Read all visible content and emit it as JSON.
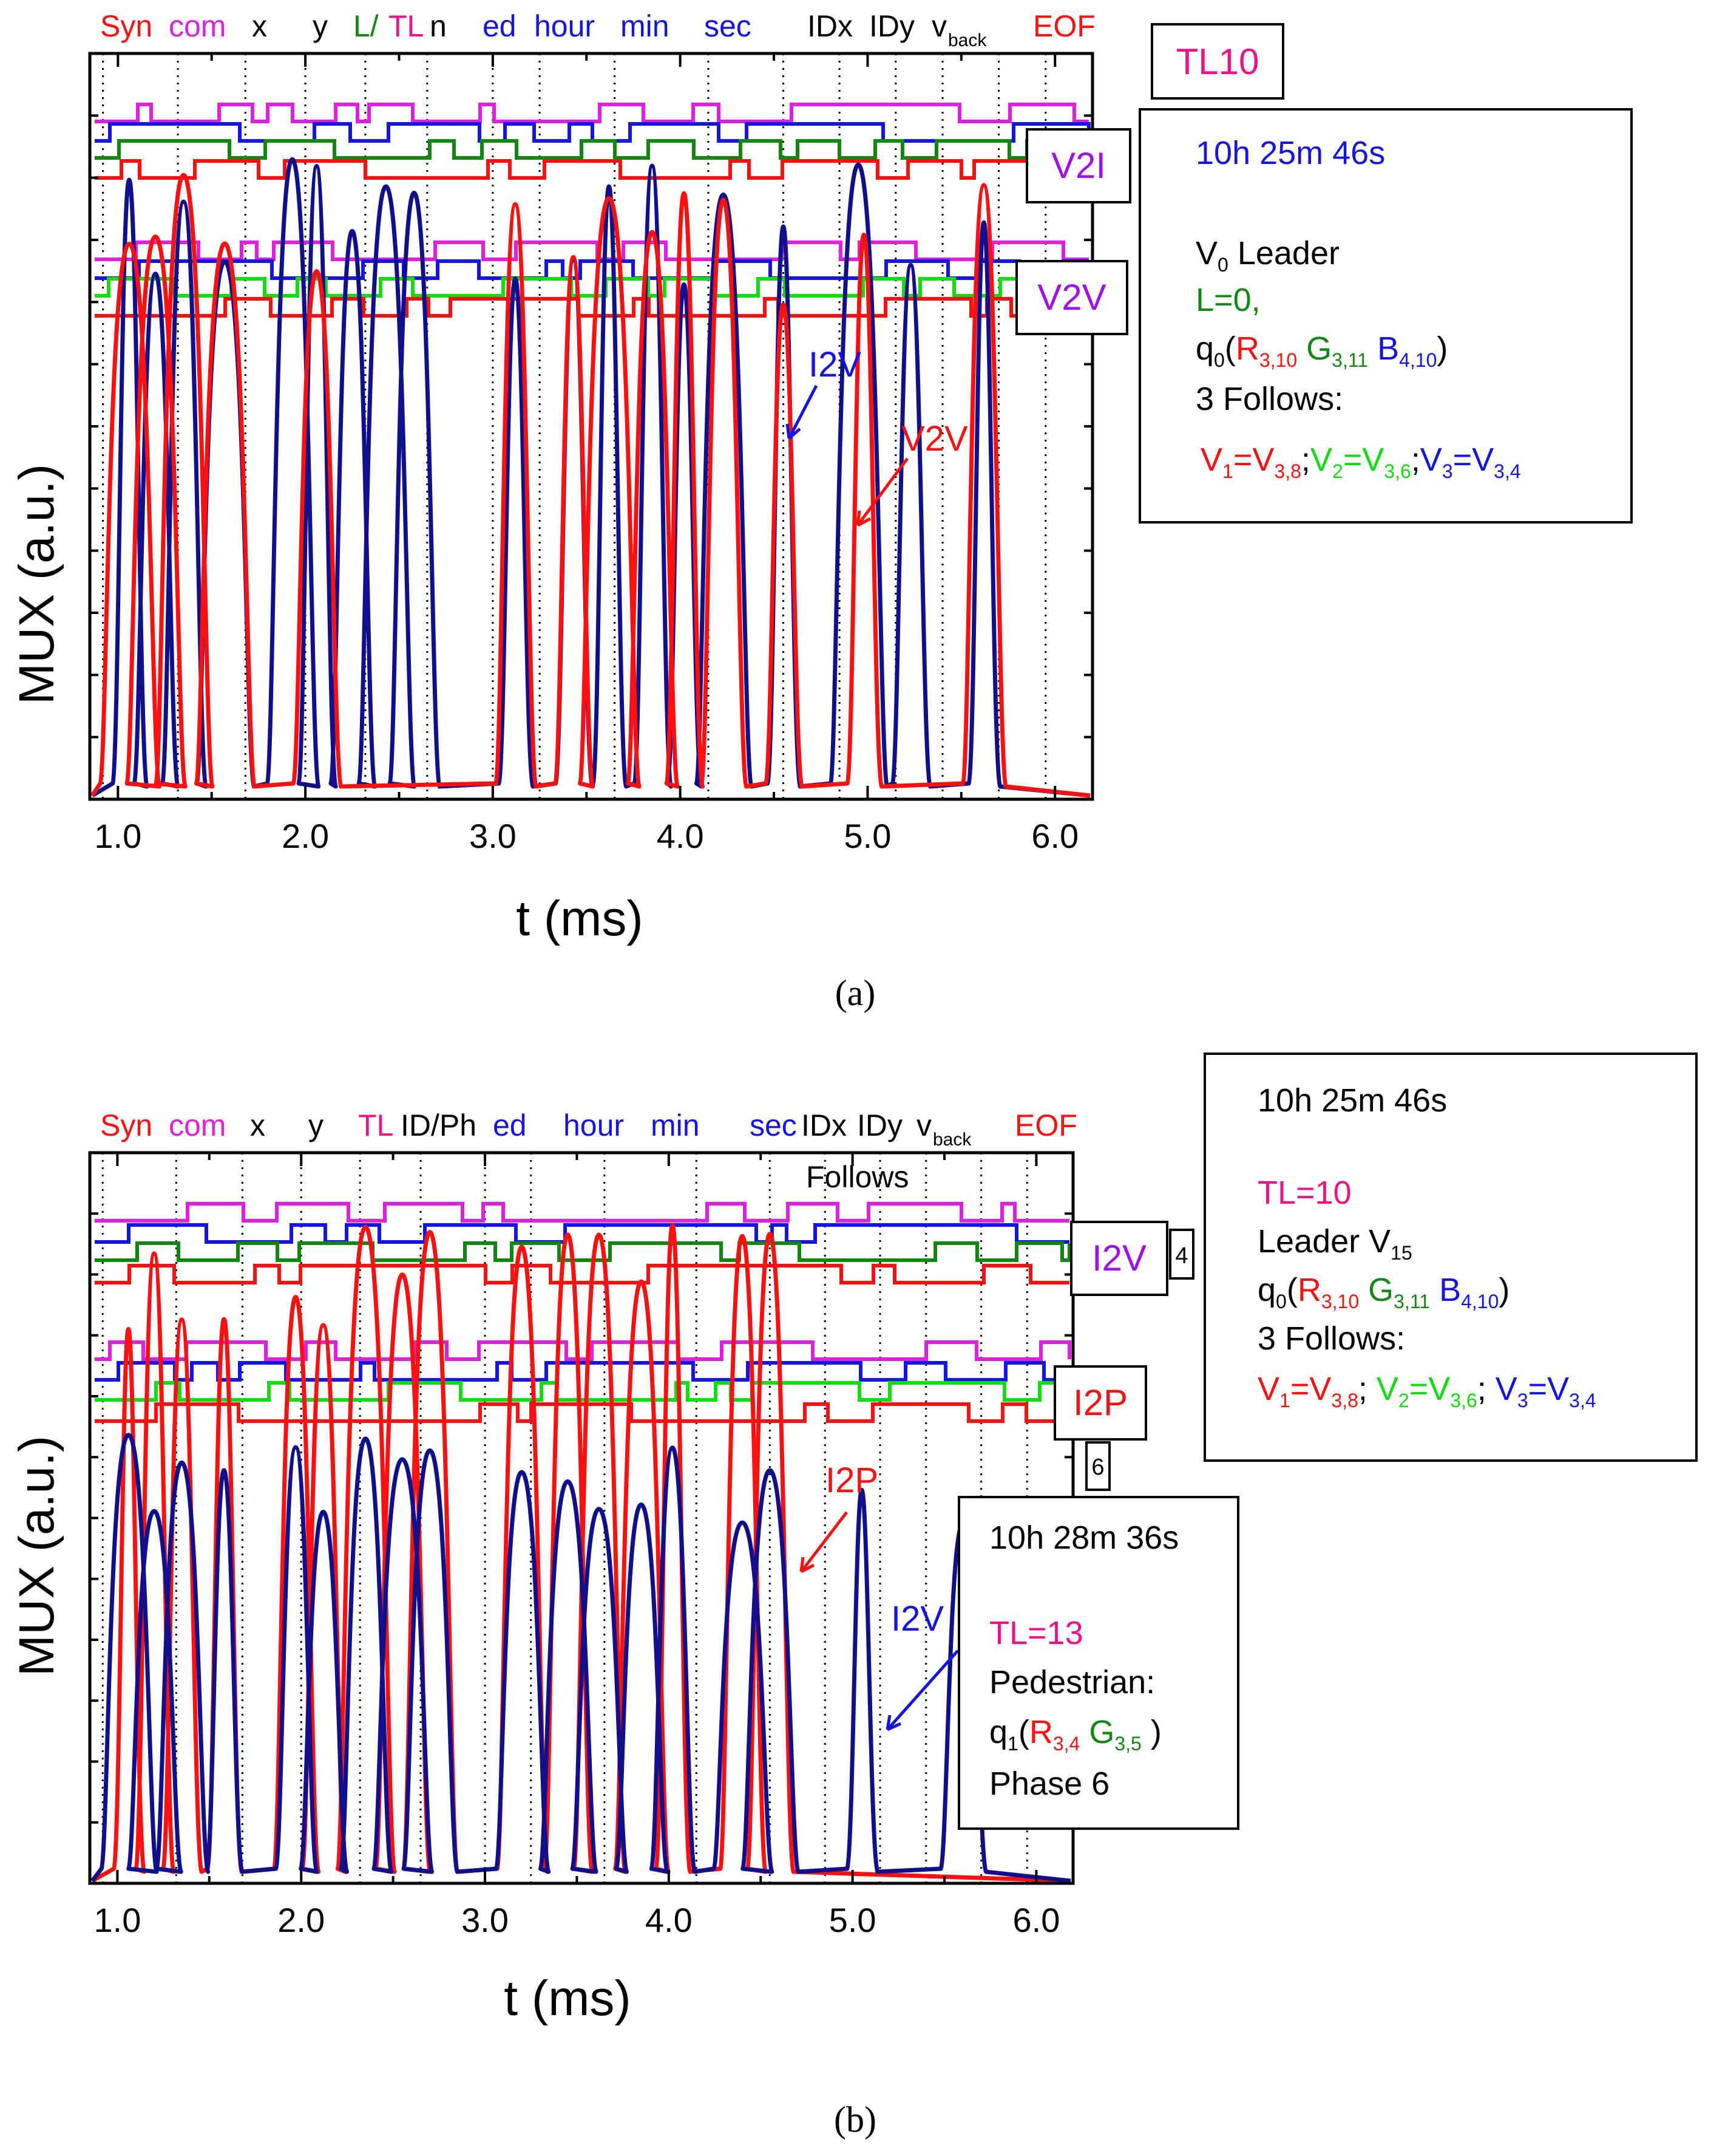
{
  "colors": {
    "red": "#ff1010",
    "magenta": "#e020e0",
    "blue": "#1414e6",
    "darkgreen": "#128812",
    "green": "#10dd10",
    "navy": "#10108c",
    "pink": "#ee1188",
    "violet": "#a010e8"
  },
  "chart_data": [
    {
      "panel": "a",
      "caption": "(a)",
      "type": "line",
      "xlabel": "t (ms)",
      "ylabel": "MUX (a.u.)",
      "xlim": [
        0.85,
        6.2
      ],
      "xticks": [
        "1.0",
        "2.0",
        "3.0",
        "4.0",
        "5.0",
        "6.0"
      ],
      "field_labels": [
        {
          "text": "Syn",
          "color": "red"
        },
        {
          "text": "com",
          "color": "magenta"
        },
        {
          "text": "x",
          "color": "black"
        },
        {
          "text": "y",
          "color": "black"
        },
        {
          "text": "L/",
          "color": "darkgreen"
        },
        {
          "text": "TL",
          "color": "pink"
        },
        {
          "text": "n",
          "color": "black"
        },
        {
          "text": "ed",
          "color": "blue"
        },
        {
          "text": "hour",
          "color": "blue"
        },
        {
          "text": "min",
          "color": "blue"
        },
        {
          "text": "sec",
          "color": "blue"
        },
        {
          "text": "IDx",
          "color": "black"
        },
        {
          "text": "IDy",
          "color": "black"
        },
        {
          "text": "v",
          "color": "black"
        },
        {
          "text": "back",
          "color": "black"
        },
        {
          "text": "EOF",
          "color": "red"
        }
      ],
      "label_boxes": [
        "TL10",
        "V2I",
        "V2V"
      ],
      "series": [
        {
          "name": "I2V",
          "color": "navy",
          "peaks_ms": [
            1.06,
            1.2,
            1.35,
            1.57,
            1.93,
            2.06,
            2.25,
            2.43,
            2.58,
            3.12,
            3.43,
            3.62,
            3.85,
            4.02,
            4.23,
            4.55,
            4.95,
            5.23,
            5.62
          ]
        },
        {
          "name": "V2V",
          "color": "red",
          "peaks_ms": [
            1.06,
            1.2,
            1.35,
            1.57,
            2.06,
            3.12,
            3.43,
            3.62,
            3.85,
            4.02,
            4.23,
            4.55,
            4.98,
            5.62
          ]
        }
      ],
      "info_box": {
        "time": "10h 25m 46s",
        "leader_prefix": "V",
        "leader_sub": "0",
        "leader_suffix": " Leader",
        "l_line": "L=0,",
        "q_prefix": "q",
        "q_sub": "0",
        "q_r": "R",
        "q_r_sub": "3,10",
        "q_g": "G",
        "q_g_sub": "3,11",
        "q_b": "B",
        "q_b_sub": "4,10",
        "follows": "3 Follows:",
        "v1": "V",
        "v1_sub": "1",
        "v1_eq": "=V",
        "v1_eq_sub": "3,8",
        "v2": "V",
        "v2_sub": "2",
        "v2_eq": "=V",
        "v2_eq_sub": "3,6",
        "v3": "V",
        "v3_sub": "3",
        "v3_eq": "=V",
        "v3_eq_sub": "3,4"
      }
    },
    {
      "panel": "b",
      "caption": "(b)",
      "type": "line",
      "xlabel": "t (ms)",
      "ylabel": "MUX (a.u.)",
      "xlim": [
        0.85,
        6.2
      ],
      "xticks": [
        "1.0",
        "2.0",
        "3.0",
        "4.0",
        "5.0",
        "6.0"
      ],
      "field_labels": [
        {
          "text": "Syn",
          "color": "red"
        },
        {
          "text": "com",
          "color": "magenta"
        },
        {
          "text": "x",
          "color": "black"
        },
        {
          "text": "y",
          "color": "black"
        },
        {
          "text": "TL",
          "color": "pink"
        },
        {
          "text": "ID/Ph",
          "color": "black"
        },
        {
          "text": "ed",
          "color": "blue"
        },
        {
          "text": "hour",
          "color": "blue"
        },
        {
          "text": "min",
          "color": "blue"
        },
        {
          "text": "sec",
          "color": "blue"
        },
        {
          "text": "IDx",
          "color": "black"
        },
        {
          "text": "IDy",
          "color": "black"
        },
        {
          "text": "v",
          "color": "black"
        },
        {
          "text": "back",
          "color": "black"
        },
        {
          "text": "EOF",
          "color": "red"
        },
        {
          "text": "Follows",
          "color": "black"
        }
      ],
      "label_boxes": [
        "I2V",
        "I2P",
        "4",
        "6"
      ],
      "series": [
        {
          "name": "I2P",
          "color": "red",
          "peaks_ms": [
            1.06,
            1.2,
            1.35,
            1.58,
            1.97,
            2.12,
            2.35,
            2.55,
            2.7,
            3.2,
            3.45,
            3.62,
            3.85,
            4.02,
            4.4,
            4.55
          ]
        },
        {
          "name": "I2V",
          "color": "navy",
          "peaks_ms": [
            1.06,
            1.2,
            1.35,
            1.58,
            1.97,
            2.12,
            2.35,
            2.55,
            2.7,
            3.2,
            3.45,
            3.62,
            3.85,
            4.02,
            4.4,
            4.55,
            5.05,
            5.6
          ]
        }
      ],
      "info_box_1": {
        "time": "10h 25m 46s",
        "tl": "TL=10",
        "leader_prefix": "Leader V",
        "leader_sub": "15",
        "q_prefix": "q",
        "q_sub": "0",
        "q_r": "R",
        "q_r_sub": "3,10",
        "q_g": "G",
        "q_g_sub": "3,11",
        "q_b": "B",
        "q_b_sub": "4,10",
        "follows": "3 Follows:",
        "v1": "V",
        "v1_sub": "1",
        "v1_eq": "=V",
        "v1_eq_sub": "3,8",
        "v2": "V",
        "v2_sub": "2",
        "v2_eq": "=V",
        "v2_eq_sub": "3,6",
        "v3": "V",
        "v3_sub": "3",
        "v3_eq": "=V",
        "v3_eq_sub": "3,4"
      },
      "info_box_2": {
        "time": "10h 28m 36s",
        "tl": "TL=13",
        "pedestrian": "Pedestrian:",
        "q_prefix": "q",
        "q_sub": "1",
        "q_r": "R",
        "q_r_sub": "3,4",
        "q_g": "G",
        "q_g_sub": "3,5",
        "phase": "Phase 6"
      }
    }
  ]
}
